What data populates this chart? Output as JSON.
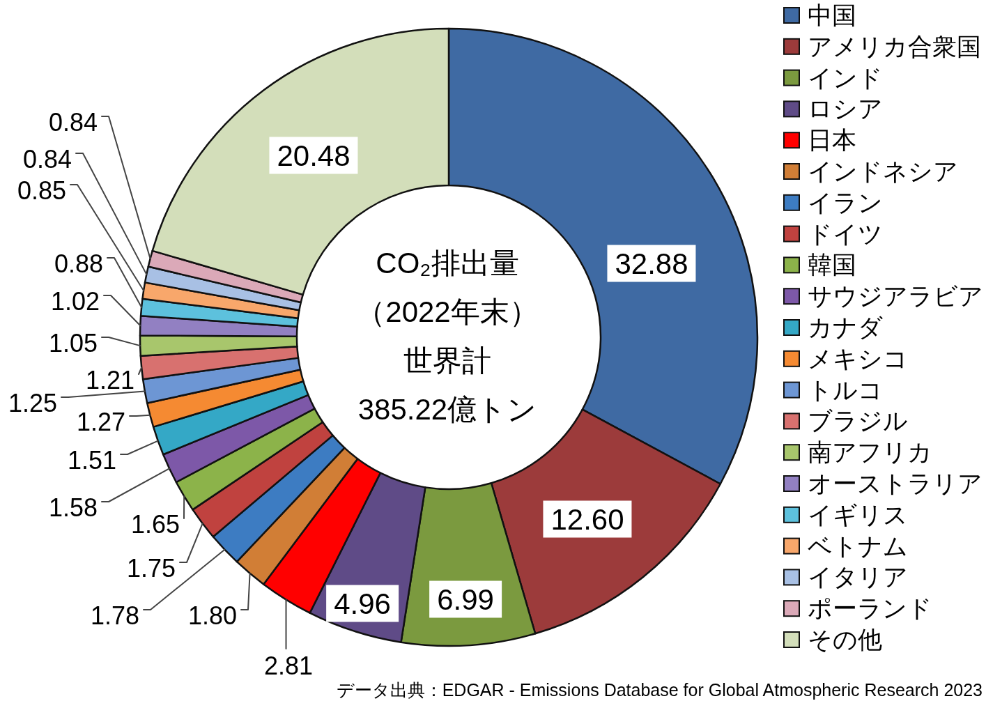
{
  "chart_data": {
    "type": "donut",
    "title": "CO₂排出量",
    "subtitle": "（2022年末）",
    "annotations": [
      "世界計",
      "385.22億トン",
      "データ出典：EDGAR - Emissions Database for Global Atmospheric Research 2023"
    ],
    "categories": [
      "中国",
      "アメリカ合衆国",
      "インド",
      "ロシア",
      "日本",
      "インドネシア",
      "イラン",
      "ドイツ",
      "韓国",
      "サウジアラビア",
      "カナダ",
      "メキシコ",
      "トルコ",
      "ブラジル",
      "南アフリカ",
      "オーストラリア",
      "イギリス",
      "ベトナム",
      "イタリア",
      "ポーランド",
      "その他"
    ],
    "values": [
      32.88,
      12.6,
      6.99,
      4.96,
      2.81,
      1.8,
      1.78,
      1.75,
      1.65,
      1.58,
      1.51,
      1.27,
      1.25,
      1.21,
      1.05,
      1.02,
      0.88,
      0.85,
      0.84,
      0.84,
      20.48
    ],
    "value_labels": [
      "32.88",
      "12.60",
      "6.99",
      "4.96",
      "2.81",
      "1.80",
      "1.78",
      "1.75",
      "1.65",
      "1.58",
      "1.51",
      "1.27",
      "1.25",
      "1.21",
      "1.05",
      "1.02",
      "0.88",
      "0.85",
      "0.84",
      "0.84",
      "20.48"
    ],
    "colors": [
      "#3f6aa3",
      "#9c3b3b",
      "#7b9a3f",
      "#5f4b87",
      "#ff0000",
      "#d17e36",
      "#3d7cc2",
      "#c0423f",
      "#8cb34a",
      "#7d58a8",
      "#34a8c6",
      "#f58a32",
      "#6d96d4",
      "#d8716f",
      "#a8c66c",
      "#9280c2",
      "#5dc1dd",
      "#f8a76b",
      "#a8c0e4",
      "#dba9b8",
      "#d3deba"
    ],
    "legend": "right"
  }
}
